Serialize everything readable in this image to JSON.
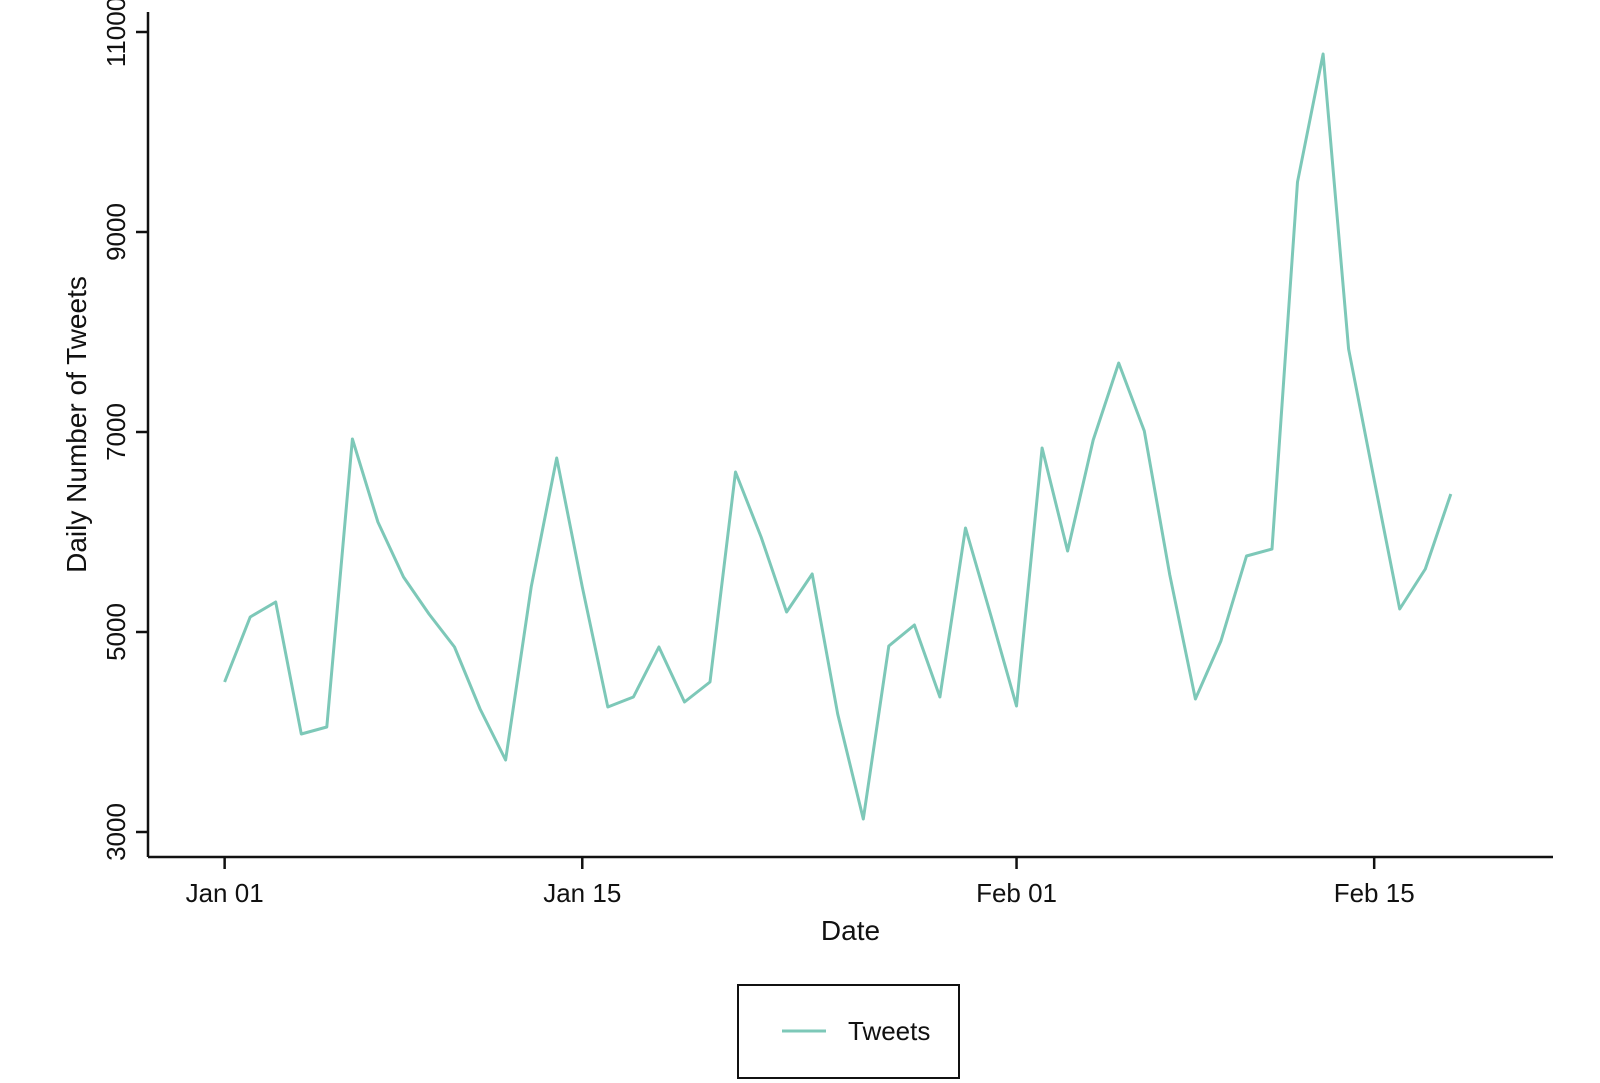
{
  "chart_data": {
    "type": "line",
    "title": "",
    "xlabel": "Date",
    "ylabel": "Daily Number of Tweets",
    "xlim": [
      "2024-12-29",
      "2025-02-22"
    ],
    "ylim": [
      2750,
      11200
    ],
    "x_ticks": [
      {
        "date": "2025-01-01",
        "label": "Jan 01"
      },
      {
        "date": "2025-01-15",
        "label": "Jan 15"
      },
      {
        "date": "2025-02-01",
        "label": "Feb 01"
      },
      {
        "date": "2025-02-15",
        "label": "Feb 15"
      }
    ],
    "y_ticks": [
      3000,
      5000,
      7000,
      9000,
      11000
    ],
    "grid": false,
    "legend": {
      "position": "bottom-center",
      "boxed": true
    },
    "series": [
      {
        "name": "Tweets",
        "color": "#7dc8b8",
        "x": [
          "2025-01-01",
          "2025-01-02",
          "2025-01-03",
          "2025-01-04",
          "2025-01-05",
          "2025-01-06",
          "2025-01-07",
          "2025-01-08",
          "2025-01-09",
          "2025-01-10",
          "2025-01-11",
          "2025-01-12",
          "2025-01-13",
          "2025-01-14",
          "2025-01-15",
          "2025-01-16",
          "2025-01-17",
          "2025-01-18",
          "2025-01-19",
          "2025-01-20",
          "2025-01-21",
          "2025-01-22",
          "2025-01-23",
          "2025-01-24",
          "2025-01-25",
          "2025-01-26",
          "2025-01-27",
          "2025-01-28",
          "2025-01-29",
          "2025-01-30",
          "2025-01-31",
          "2025-02-01",
          "2025-02-02",
          "2025-02-03",
          "2025-02-04",
          "2025-02-05",
          "2025-02-06",
          "2025-02-07",
          "2025-02-08",
          "2025-02-09",
          "2025-02-10",
          "2025-02-11",
          "2025-02-12",
          "2025-02-13",
          "2025-02-14",
          "2025-02-15",
          "2025-02-16",
          "2025-02-17",
          "2025-02-18"
        ],
        "values": [
          4500,
          5150,
          5300,
          3980,
          4050,
          6930,
          6100,
          5550,
          5180,
          4850,
          4230,
          3720,
          5450,
          6740,
          5450,
          4250,
          4350,
          4850,
          4300,
          4500,
          6600,
          5950,
          5200,
          5580,
          4180,
          3130,
          4860,
          5070,
          4350,
          6040,
          5160,
          4260,
          6840,
          5810,
          6920,
          7690,
          7010,
          5570,
          4330,
          4910,
          5760,
          5830,
          9500,
          10780,
          7830,
          6520,
          5230,
          5630,
          6380
        ]
      }
    ]
  }
}
